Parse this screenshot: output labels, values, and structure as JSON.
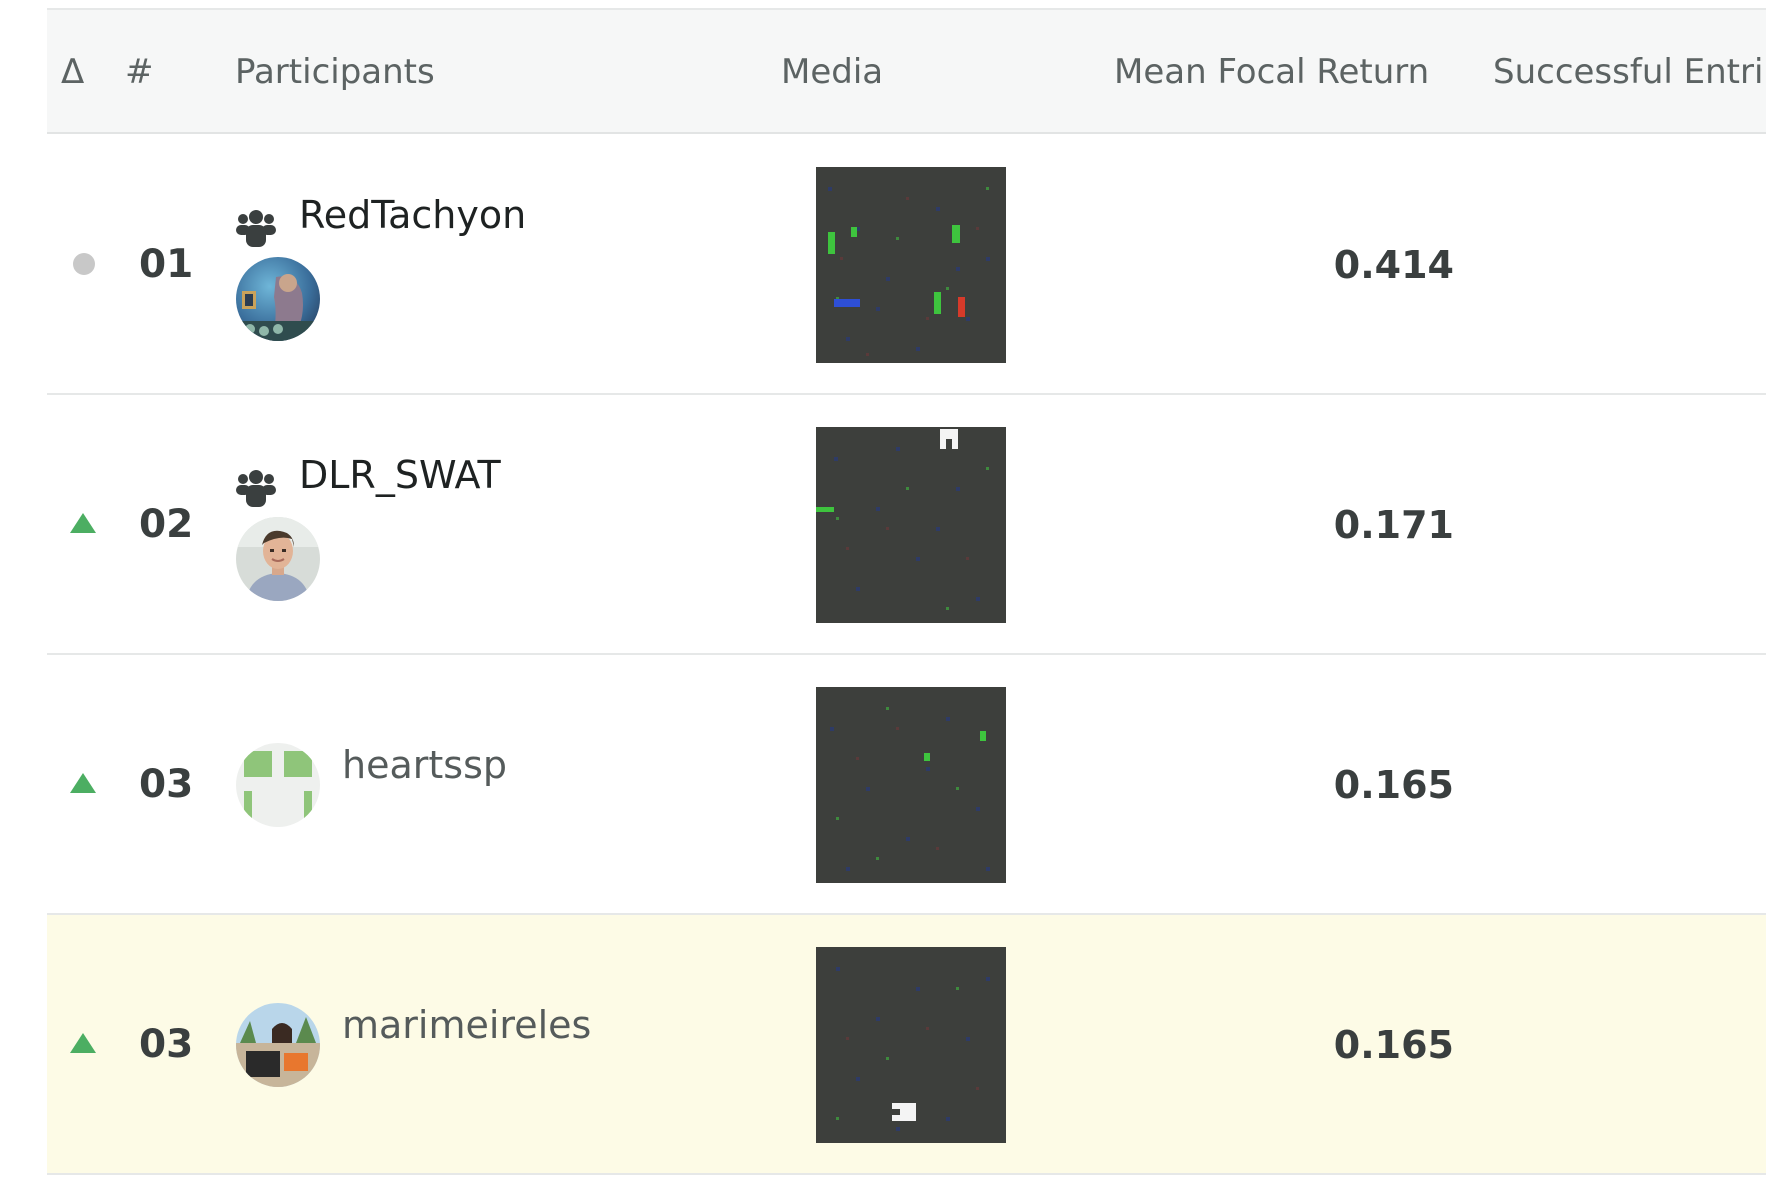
{
  "header": {
    "delta_label": "Δ",
    "rank_label": "#",
    "participants_label": "Participants",
    "media_label": "Media",
    "score_label": "Mean Focal Return",
    "successful_label": "Successful Entri"
  },
  "rows": [
    {
      "delta": "same",
      "rank": "01",
      "participant_type": "team",
      "name": "RedTachyon",
      "score": "0.414",
      "highlight": false
    },
    {
      "delta": "up",
      "rank": "02",
      "participant_type": "team",
      "name": "DLR_SWAT",
      "score": "0.171",
      "highlight": false
    },
    {
      "delta": "up",
      "rank": "03",
      "participant_type": "user",
      "name": "heartssp",
      "score": "0.165",
      "highlight": false
    },
    {
      "delta": "up",
      "rank": "03",
      "participant_type": "user",
      "name": "marimeireles",
      "score": "0.165",
      "highlight": true
    }
  ],
  "colors": {
    "header_bg": "#f6f7f7",
    "highlight_bg": "#fdfbe6",
    "delta_up": "#4cae62",
    "delta_same": "#c8c8c8",
    "media_bg": "#3d3f3c"
  },
  "icons": {
    "team": "team-icon",
    "delta_up": "triangle-up-icon",
    "delta_same": "dot-icon"
  }
}
